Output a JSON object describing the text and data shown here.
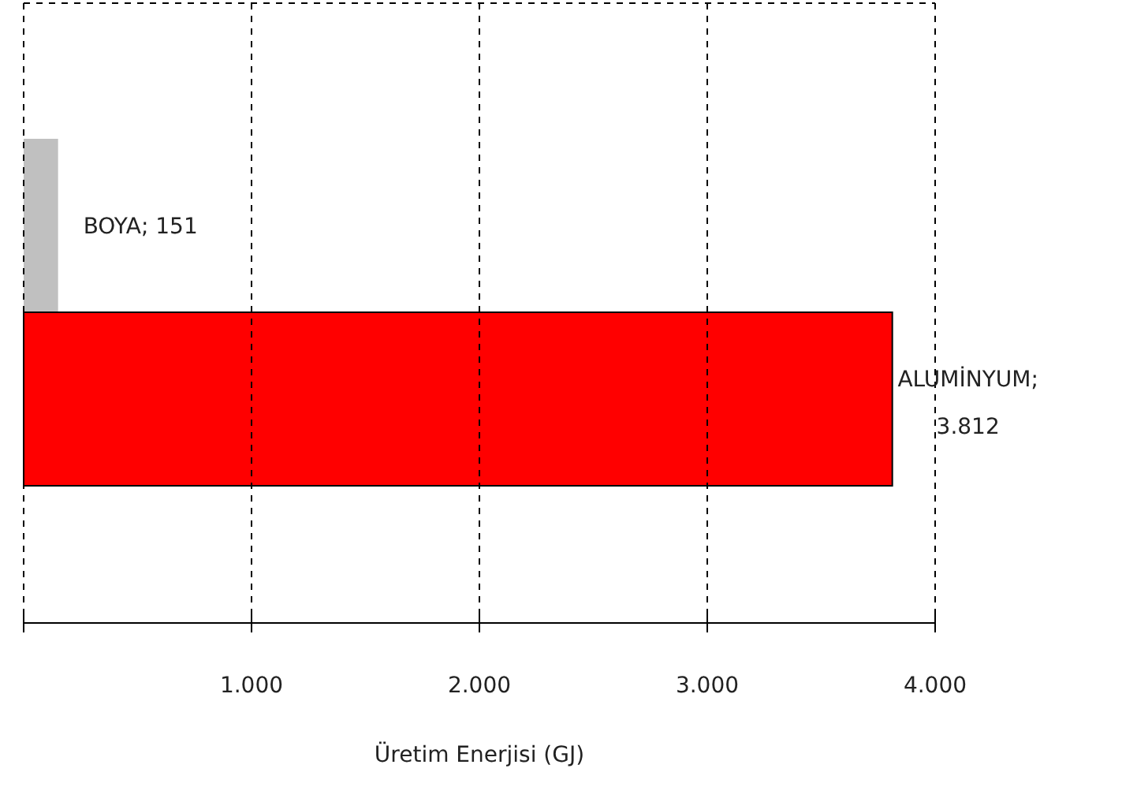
{
  "chart_data": {
    "type": "bar",
    "orientation": "horizontal",
    "xlabel": "Üretim Enerjisi (GJ)",
    "categories": [
      null,
      null
    ],
    "values": [
      151,
      3812
    ],
    "colors": [
      "#c0c0c0",
      "#ff0000"
    ],
    "value_labels": [
      "BOYA; 151",
      "ALUMİNYUM; 3.812"
    ],
    "xlim": [
      0,
      4000
    ],
    "xticks": [
      {
        "value": 0,
        "label": null
      },
      {
        "value": 1000,
        "label": "1.000"
      },
      {
        "value": 2000,
        "label": "2.000"
      },
      {
        "value": 3000,
        "label": "3.000"
      },
      {
        "value": 4000,
        "label": "4.000"
      }
    ],
    "grid": "x",
    "tick_labels": "x"
  }
}
